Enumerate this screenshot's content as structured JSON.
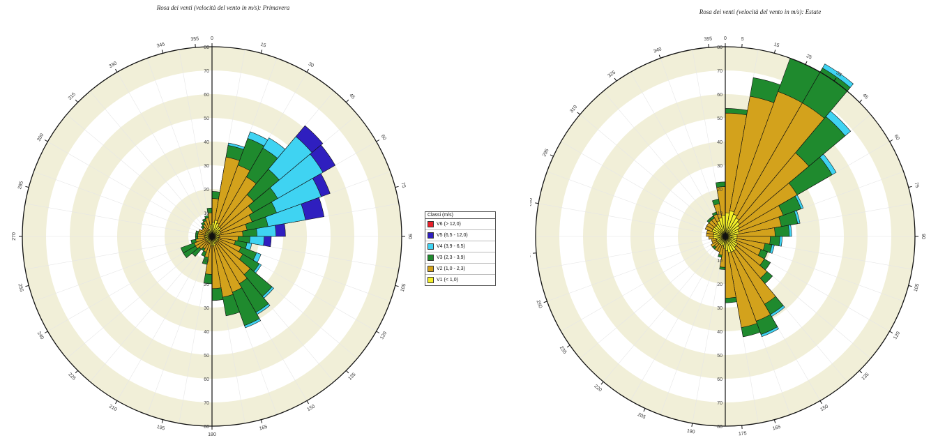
{
  "chart_data": [
    {
      "type": "rose",
      "title": "Rosa dei venti (velocità del vento in m/s): Primavera",
      "radial_ticks": [
        10,
        20,
        30,
        40,
        50,
        60,
        70,
        80
      ],
      "r_max": 80,
      "direction_ticks": [
        "0",
        "15",
        "30",
        "45",
        "60",
        "75",
        "90",
        "105",
        "120",
        "135",
        "150",
        "165",
        "180",
        "195",
        "210",
        "225",
        "240",
        "255",
        "270",
        "285",
        "300",
        "315",
        "330",
        "345",
        "355"
      ],
      "sector_width_deg": 10,
      "classes_order": [
        "V1",
        "V2",
        "V3",
        "V4",
        "V5",
        "V6"
      ],
      "sectors": [
        {
          "dir": 5,
          "values": [
            6,
            10,
            3,
            0,
            0,
            0
          ]
        },
        {
          "dir": 15,
          "values": [
            7,
            27,
            5,
            1,
            0,
            0
          ]
        },
        {
          "dir": 25,
          "values": [
            6,
            26,
            12,
            3,
            0,
            0
          ]
        },
        {
          "dir": 35,
          "values": [
            5,
            24,
            14,
            5,
            0,
            0
          ]
        },
        {
          "dir": 45,
          "values": [
            5,
            18,
            14,
            18,
            6,
            0
          ]
        },
        {
          "dir": 55,
          "values": [
            4,
            16,
            12,
            22,
            6,
            0
          ]
        },
        {
          "dir": 65,
          "values": [
            4,
            14,
            11,
            20,
            4,
            0
          ]
        },
        {
          "dir": 75,
          "values": [
            3,
            12,
            9,
            16,
            8,
            0
          ]
        },
        {
          "dir": 85,
          "values": [
            3,
            10,
            6,
            8,
            4,
            0
          ]
        },
        {
          "dir": 95,
          "values": [
            3,
            8,
            5,
            6,
            3,
            0
          ]
        },
        {
          "dir": 105,
          "values": [
            3,
            7,
            5,
            2,
            0,
            0
          ]
        },
        {
          "dir": 115,
          "values": [
            3,
            10,
            7,
            2,
            0,
            0
          ]
        },
        {
          "dir": 125,
          "values": [
            3,
            12,
            8,
            1,
            0,
            0
          ]
        },
        {
          "dir": 135,
          "values": [
            3,
            18,
            12,
            1,
            0,
            0
          ]
        },
        {
          "dir": 145,
          "values": [
            3,
            20,
            14,
            1,
            0,
            0
          ]
        },
        {
          "dir": 155,
          "values": [
            3,
            22,
            15,
            1,
            0,
            0
          ]
        },
        {
          "dir": 165,
          "values": [
            4,
            22,
            8,
            0,
            0,
            0
          ]
        },
        {
          "dir": 175,
          "values": [
            4,
            18,
            5,
            0,
            0,
            0
          ]
        },
        {
          "dir": 185,
          "values": [
            4,
            12,
            4,
            0,
            0,
            0
          ]
        },
        {
          "dir": 195,
          "values": [
            3,
            6,
            3,
            0,
            0,
            0
          ]
        },
        {
          "dir": 205,
          "values": [
            3,
            4,
            2,
            0,
            0,
            0
          ]
        },
        {
          "dir": 215,
          "values": [
            3,
            3,
            1,
            0,
            0,
            0
          ]
        },
        {
          "dir": 225,
          "values": [
            3,
            4,
            4,
            0,
            0,
            0
          ]
        },
        {
          "dir": 235,
          "values": [
            3,
            5,
            6,
            0,
            0,
            0
          ]
        },
        {
          "dir": 245,
          "values": [
            3,
            5,
            6,
            0,
            0,
            0
          ]
        },
        {
          "dir": 255,
          "values": [
            3,
            4,
            2,
            0,
            0,
            0
          ]
        },
        {
          "dir": 265,
          "values": [
            3,
            3,
            1,
            0,
            0,
            0
          ]
        },
        {
          "dir": 275,
          "values": [
            3,
            3,
            1,
            0,
            0,
            0
          ]
        },
        {
          "dir": 285,
          "values": [
            3,
            3,
            1,
            0,
            0,
            0
          ]
        },
        {
          "dir": 295,
          "values": [
            3,
            3,
            0,
            0,
            0,
            0
          ]
        },
        {
          "dir": 305,
          "values": [
            3,
            2,
            0,
            0,
            0,
            0
          ]
        },
        {
          "dir": 315,
          "values": [
            3,
            2,
            1,
            0,
            0,
            0
          ]
        },
        {
          "dir": 325,
          "values": [
            3,
            3,
            1,
            0,
            0,
            0
          ]
        },
        {
          "dir": 335,
          "values": [
            3,
            4,
            1,
            0,
            0,
            0
          ]
        },
        {
          "dir": 345,
          "values": [
            4,
            4,
            1,
            0,
            0,
            0
          ]
        },
        {
          "dir": 355,
          "values": [
            5,
            5,
            2,
            0,
            0,
            0
          ]
        }
      ]
    },
    {
      "type": "rose",
      "title": "Rosa dei venti (velocità del vento in m/s): Estate",
      "radial_ticks": [
        10,
        20,
        30,
        40,
        50,
        60,
        70,
        80
      ],
      "r_max": 80,
      "direction_ticks": [
        "0",
        "5",
        "15",
        "25",
        "35",
        "45",
        "60",
        "75",
        "90",
        "105",
        "120",
        "135",
        "150",
        "165",
        "175",
        "190",
        "205",
        "220",
        "235",
        "250",
        "265",
        "280",
        "295",
        "310",
        "325",
        "340",
        "355"
      ],
      "sector_width_deg": 10,
      "classes_order": [
        "V1",
        "V2",
        "V3",
        "V4",
        "V5",
        "V6"
      ],
      "sectors": [
        {
          "dir": 5,
          "values": [
            10,
            42,
            2,
            0,
            0,
            0
          ]
        },
        {
          "dir": 15,
          "values": [
            11,
            49,
            8,
            0,
            0,
            0
          ]
        },
        {
          "dir": 25,
          "values": [
            10,
            55,
            15,
            0,
            0,
            0
          ]
        },
        {
          "dir": 35,
          "values": [
            9,
            56,
            17,
            2,
            0,
            0
          ]
        },
        {
          "dir": 45,
          "values": [
            8,
            38,
            20,
            3,
            0,
            0
          ]
        },
        {
          "dir": 55,
          "values": [
            7,
            28,
            17,
            2,
            0,
            0
          ]
        },
        {
          "dir": 65,
          "values": [
            6,
            20,
            8,
            1,
            0,
            0
          ]
        },
        {
          "dir": 75,
          "values": [
            6,
            18,
            7,
            1,
            0,
            0
          ]
        },
        {
          "dir": 85,
          "values": [
            5,
            16,
            6,
            1,
            0,
            0
          ]
        },
        {
          "dir": 95,
          "values": [
            5,
            14,
            4,
            1,
            0,
            0
          ]
        },
        {
          "dir": 105,
          "values": [
            5,
            12,
            3,
            1,
            0,
            0
          ]
        },
        {
          "dir": 115,
          "values": [
            5,
            11,
            3,
            0,
            0,
            0
          ]
        },
        {
          "dir": 125,
          "values": [
            6,
            13,
            3,
            0,
            0,
            0
          ]
        },
        {
          "dir": 135,
          "values": [
            6,
            17,
            3,
            0,
            0,
            0
          ]
        },
        {
          "dir": 145,
          "values": [
            7,
            26,
            5,
            1,
            0,
            0
          ]
        },
        {
          "dir": 155,
          "values": [
            7,
            31,
            6,
            1,
            0,
            0
          ]
        },
        {
          "dir": 165,
          "values": [
            7,
            32,
            4,
            0,
            0,
            0
          ]
        },
        {
          "dir": 175,
          "values": [
            6,
            20,
            2,
            0,
            0,
            0
          ]
        },
        {
          "dir": 185,
          "values": [
            5,
            8,
            1,
            0,
            0,
            0
          ]
        },
        {
          "dir": 195,
          "values": [
            4,
            4,
            1,
            0,
            0,
            0
          ]
        },
        {
          "dir": 205,
          "values": [
            4,
            3,
            0,
            0,
            0,
            0
          ]
        },
        {
          "dir": 215,
          "values": [
            4,
            3,
            0,
            0,
            0,
            0
          ]
        },
        {
          "dir": 225,
          "values": [
            4,
            2,
            1,
            0,
            0,
            0
          ]
        },
        {
          "dir": 235,
          "values": [
            4,
            3,
            0,
            0,
            0,
            0
          ]
        },
        {
          "dir": 245,
          "values": [
            4,
            2,
            0,
            0,
            0,
            0
          ]
        },
        {
          "dir": 255,
          "values": [
            4,
            2,
            0,
            0,
            0,
            0
          ]
        },
        {
          "dir": 265,
          "values": [
            5,
            2,
            0,
            0,
            0,
            0
          ]
        },
        {
          "dir": 275,
          "values": [
            5,
            3,
            0,
            0,
            0,
            0
          ]
        },
        {
          "dir": 285,
          "values": [
            5,
            3,
            0,
            0,
            0,
            0
          ]
        },
        {
          "dir": 295,
          "values": [
            6,
            3,
            0,
            0,
            0,
            0
          ]
        },
        {
          "dir": 305,
          "values": [
            6,
            3,
            0,
            0,
            0,
            0
          ]
        },
        {
          "dir": 315,
          "values": [
            6,
            3,
            1,
            0,
            0,
            0
          ]
        },
        {
          "dir": 325,
          "values": [
            6,
            3,
            1,
            0,
            0,
            0
          ]
        },
        {
          "dir": 335,
          "values": [
            7,
            3,
            1,
            0,
            0,
            0
          ]
        },
        {
          "dir": 345,
          "values": [
            8,
            6,
            2,
            0,
            0,
            0
          ]
        },
        {
          "dir": 355,
          "values": [
            9,
            12,
            2,
            0,
            0,
            0
          ]
        }
      ]
    }
  ],
  "legend": {
    "title": "Classi (m/s)",
    "items": [
      {
        "label": "V6 (> 12,0)",
        "color": "#e8202a"
      },
      {
        "label": "V5 (6,5 - 12,0)",
        "color": "#2f1fbf"
      },
      {
        "label": "V4 (3,9 - 6,5)",
        "color": "#3fd3f2"
      },
      {
        "label": "V3 (2,3 - 3,9)",
        "color": "#1f8a2e"
      },
      {
        "label": "V2 (1,0 - 2,3)",
        "color": "#d3a21c"
      },
      {
        "label": "V1 (< 1,0)",
        "color": "#f4ef28"
      }
    ]
  },
  "colors": {
    "V1": "#f4ef28",
    "V2": "#d3a21c",
    "V3": "#1f8a2e",
    "V4": "#3fd3f2",
    "V5": "#2f1fbf",
    "V6": "#e8202a",
    "band": "#f1efd8"
  }
}
